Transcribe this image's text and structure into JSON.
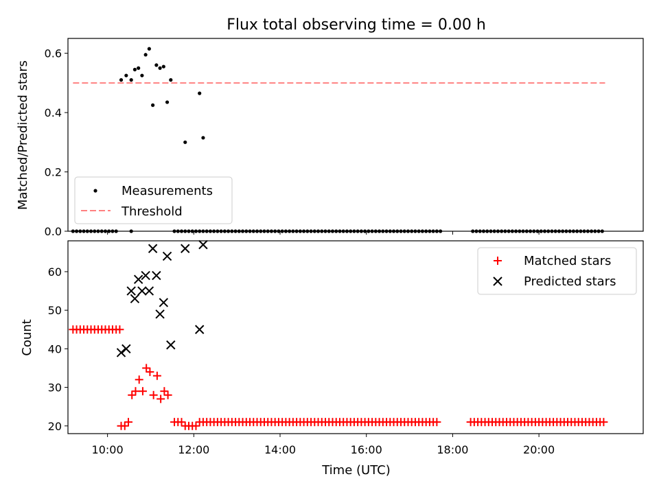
{
  "chart_data": {
    "type": "scatter",
    "title": "Flux total observing time = 0.00 h",
    "xlabel": "Time (UTC)",
    "x_ticks": [
      "10:00",
      "12:00",
      "14:00",
      "16:00",
      "18:00",
      "20:00"
    ],
    "xlim": [
      "09:05",
      "22:25"
    ],
    "top_panel": {
      "ylabel": "Matched/Predicted stars",
      "ylim": [
        0,
        0.65
      ],
      "yticks": [
        "0.0",
        "0.2",
        "0.4",
        "0.6"
      ],
      "legend_position": "lower-left",
      "threshold": {
        "name": "Threshold",
        "value": 0.5,
        "x_range": [
          "09:12",
          "21:32"
        ],
        "color": "#ff8080"
      },
      "measurements": {
        "name": "Measurements",
        "color": "#000000",
        "nonzero_points": [
          {
            "x": "10:19",
            "y": 0.51
          },
          {
            "x": "10:26",
            "y": 0.525
          },
          {
            "x": "10:33",
            "y": 0.51
          },
          {
            "x": "10:38",
            "y": 0.545
          },
          {
            "x": "10:43",
            "y": 0.55
          },
          {
            "x": "10:48",
            "y": 0.525
          },
          {
            "x": "10:53",
            "y": 0.595
          },
          {
            "x": "10:58",
            "y": 0.615
          },
          {
            "x": "11:03",
            "y": 0.425
          },
          {
            "x": "11:08",
            "y": 0.56
          },
          {
            "x": "11:13",
            "y": 0.55
          },
          {
            "x": "11:18",
            "y": 0.555
          },
          {
            "x": "11:23",
            "y": 0.435
          },
          {
            "x": "11:28",
            "y": 0.51
          },
          {
            "x": "11:48",
            "y": 0.3
          },
          {
            "x": "12:08",
            "y": 0.465
          },
          {
            "x": "12:13",
            "y": 0.315
          }
        ],
        "zero_ranges": [
          [
            "09:12",
            "10:12"
          ],
          [
            "10:33",
            "10:33"
          ],
          [
            "11:33",
            "21:32"
          ]
        ],
        "zero_gaps": [
          [
            "17:45",
            "18:25"
          ]
        ]
      }
    },
    "bottom_panel": {
      "ylabel": "Count",
      "ylim": [
        18,
        68
      ],
      "yticks": [
        "20",
        "30",
        "40",
        "50",
        "60"
      ],
      "legend_position": "top-right",
      "matched": {
        "name": "Matched stars",
        "color": "#ff0000",
        "segments": [
          {
            "from": "09:12",
            "to": "10:17",
            "y": 45
          },
          {
            "from": "11:33",
            "to": "11:43",
            "y": 21
          },
          {
            "from": "11:48",
            "to": "12:03",
            "y": 20
          },
          {
            "from": "12:08",
            "to": "17:40",
            "y": 21
          },
          {
            "from": "18:25",
            "to": "21:32",
            "y": 21
          }
        ],
        "points": [
          {
            "x": "10:19",
            "y": 20
          },
          {
            "x": "10:24",
            "y": 20
          },
          {
            "x": "10:29",
            "y": 21
          },
          {
            "x": "10:34",
            "y": 28
          },
          {
            "x": "10:39",
            "y": 29
          },
          {
            "x": "10:44",
            "y": 32
          },
          {
            "x": "10:49",
            "y": 29
          },
          {
            "x": "10:54",
            "y": 35
          },
          {
            "x": "10:59",
            "y": 34
          },
          {
            "x": "11:04",
            "y": 28
          },
          {
            "x": "11:09",
            "y": 33
          },
          {
            "x": "11:14",
            "y": 27
          },
          {
            "x": "11:19",
            "y": 29
          },
          {
            "x": "11:24",
            "y": 28
          }
        ]
      },
      "predicted": {
        "name": "Predicted stars",
        "color": "#000000",
        "points": [
          {
            "x": "10:19",
            "y": 39
          },
          {
            "x": "10:26",
            "y": 40
          },
          {
            "x": "10:33",
            "y": 55
          },
          {
            "x": "10:38",
            "y": 53
          },
          {
            "x": "10:43",
            "y": 58
          },
          {
            "x": "10:48",
            "y": 55
          },
          {
            "x": "10:53",
            "y": 59
          },
          {
            "x": "10:58",
            "y": 55
          },
          {
            "x": "11:03",
            "y": 66
          },
          {
            "x": "11:08",
            "y": 59
          },
          {
            "x": "11:13",
            "y": 49
          },
          {
            "x": "11:18",
            "y": 52
          },
          {
            "x": "11:23",
            "y": 64
          },
          {
            "x": "11:28",
            "y": 41
          },
          {
            "x": "11:48",
            "y": 66
          },
          {
            "x": "12:08",
            "y": 45
          },
          {
            "x": "12:13",
            "y": 67
          }
        ]
      }
    }
  }
}
